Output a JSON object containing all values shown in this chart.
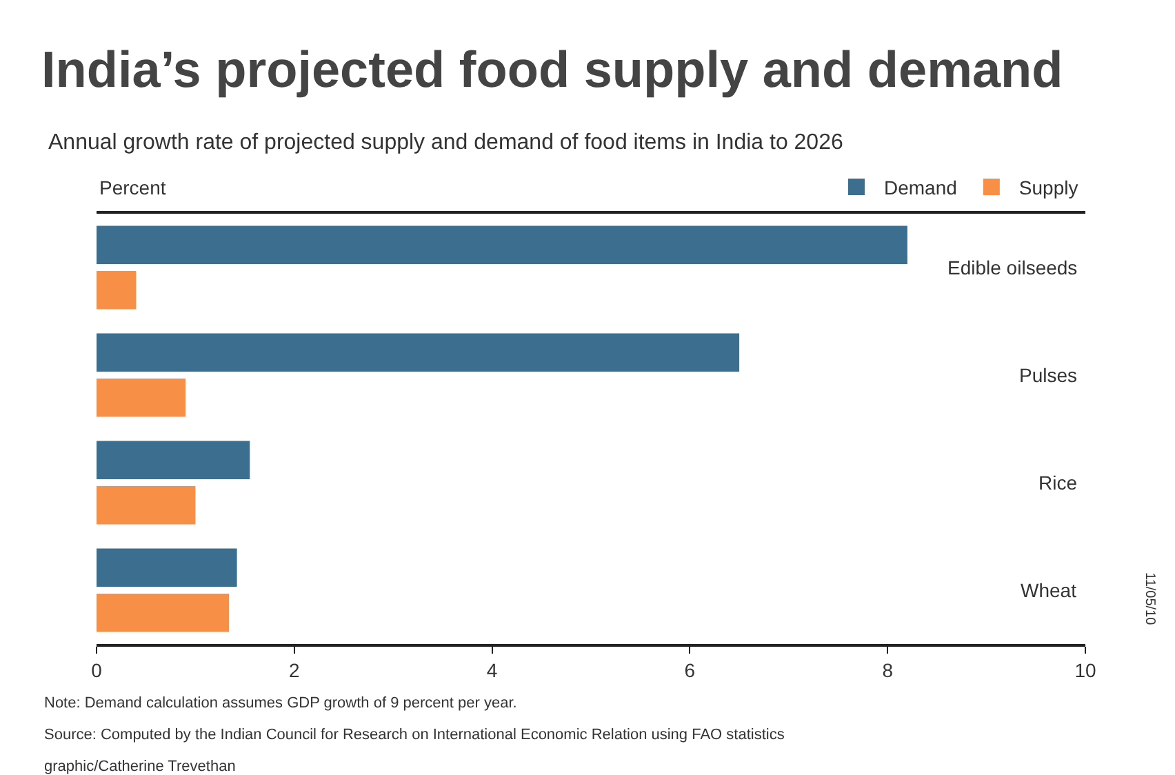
{
  "chart_data": {
    "type": "bar",
    "orientation": "horizontal",
    "title": "India’s projected food supply and demand",
    "subtitle": "Annual growth rate of projected supply and demand of food items in India to 2026",
    "xlabel": "Percent",
    "categories": [
      "Edible oilseeds",
      "Pulses",
      "Rice",
      "Wheat"
    ],
    "series": [
      {
        "name": "Demand",
        "color": "#3b6e8f",
        "values": [
          8.2,
          6.5,
          1.55,
          1.42
        ]
      },
      {
        "name": "Supply",
        "color": "#f78f47",
        "values": [
          0.4,
          0.9,
          1.0,
          1.34
        ]
      }
    ],
    "xlim": [
      0,
      10
    ],
    "xticks": [
      0,
      2,
      4,
      6,
      8,
      10
    ],
    "legend": "top right",
    "annotations": [
      "Note: Demand calculation assumes GDP growth of 9 percent per year.",
      "Source: Computed by the Indian Council for Research on International Economic Relation using FAO statistics",
      "graphic/Catherine Trevethan",
      "11/05/10"
    ]
  }
}
